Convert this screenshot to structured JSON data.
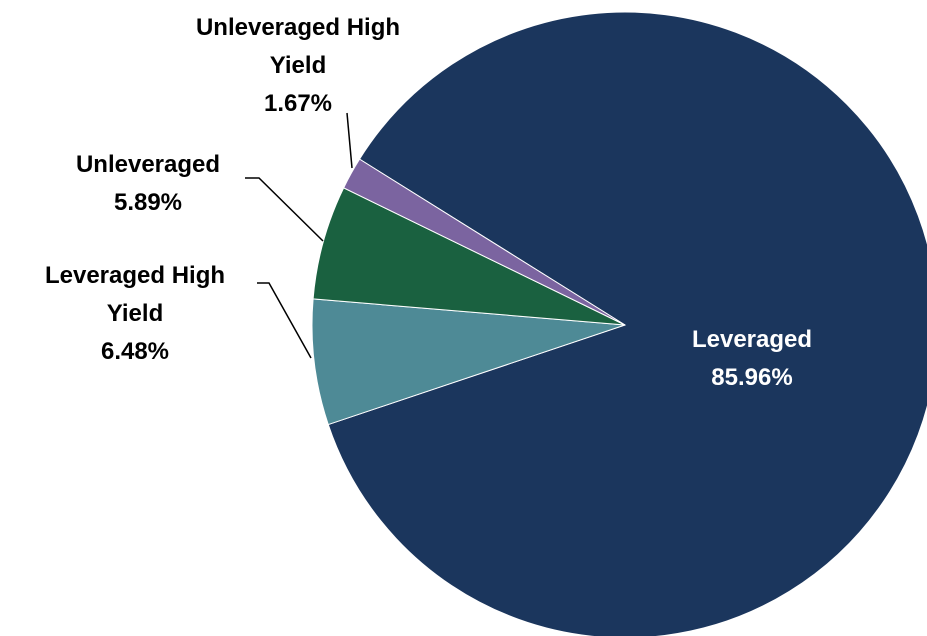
{
  "chart_data": {
    "type": "pie",
    "categories": [
      "Leveraged",
      "Leveraged High Yield",
      "Unleveraged",
      "Unleveraged High Yield"
    ],
    "values": [
      85.96,
      6.48,
      5.89,
      1.67
    ],
    "value_labels": [
      "85.96%",
      "6.48%",
      "5.89%",
      "1.67%"
    ],
    "colors": [
      "#1b365d",
      "#4e8a96",
      "#1a6140",
      "#7b64a0"
    ]
  }
}
